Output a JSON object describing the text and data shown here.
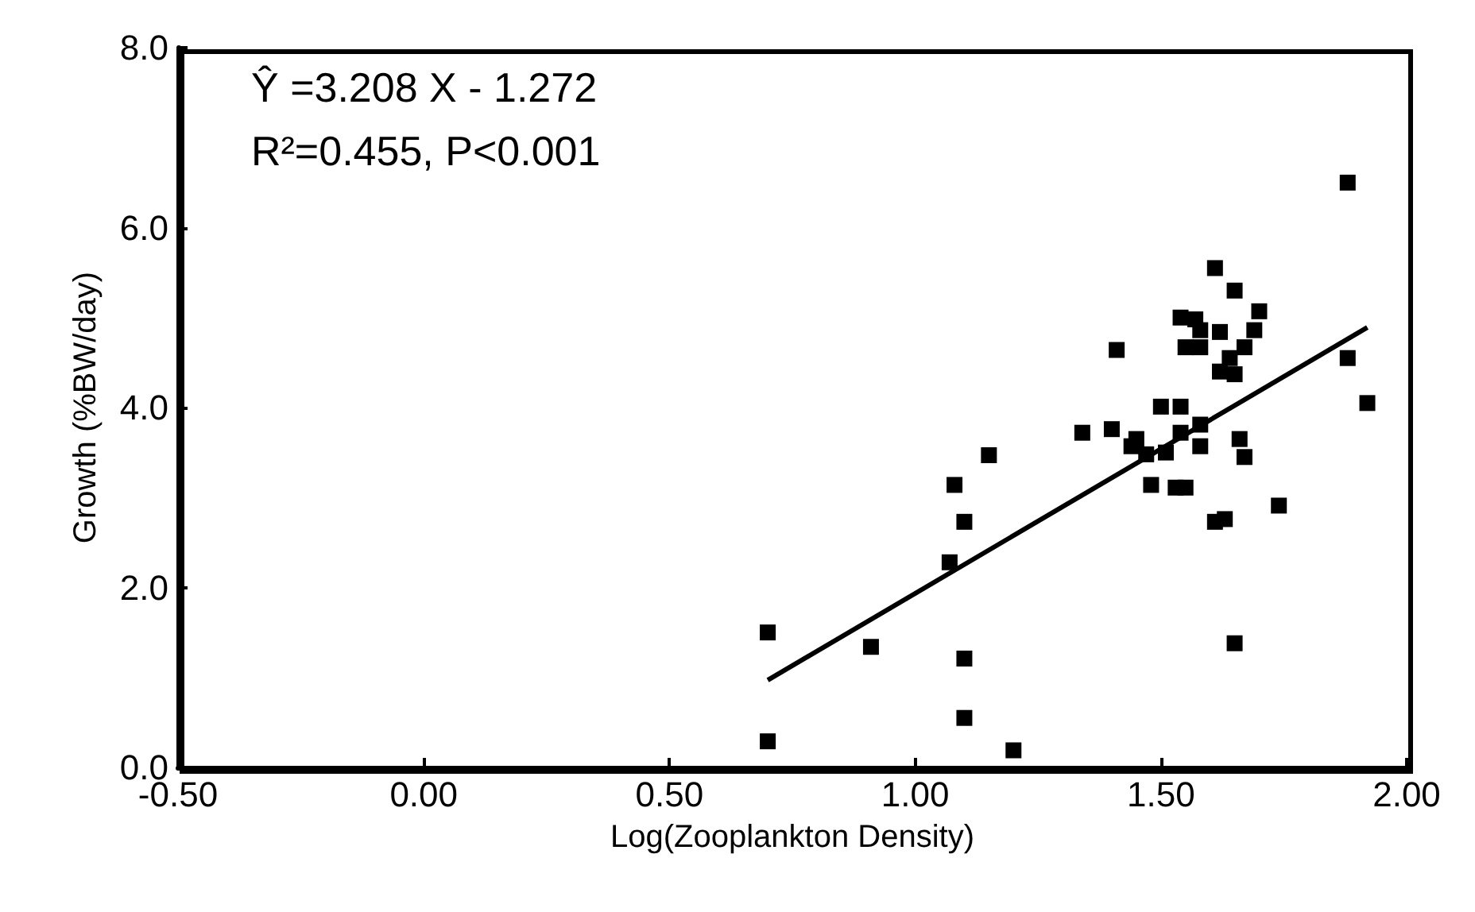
{
  "chart_data": {
    "type": "scatter",
    "xlabel": "Log(Zooplankton Density)",
    "ylabel": "Growth (%BW/day)",
    "annotations": [
      "Ŷ =3.208 X - 1.272",
      "R²=0.455, P<0.001"
    ],
    "xlim": [
      -0.5,
      2.0
    ],
    "ylim": [
      0,
      8
    ],
    "xticks": [
      {
        "value": -0.5,
        "label": "-0.50"
      },
      {
        "value": 0,
        "label": "0.00"
      },
      {
        "value": 0.5,
        "label": "0.50"
      },
      {
        "value": 1,
        "label": "1.00"
      },
      {
        "value": 1.5,
        "label": "1.50"
      },
      {
        "value": 2,
        "label": "2.00"
      }
    ],
    "yticks": [
      {
        "value": 0,
        "label": "0.0"
      },
      {
        "value": 2,
        "label": "2.0"
      },
      {
        "value": 4,
        "label": "4.0"
      },
      {
        "value": 6,
        "label": "6.0"
      },
      {
        "value": 8,
        "label": "8.0"
      }
    ],
    "grid": false,
    "marker": "square",
    "series": [
      {
        "color": "#000000",
        "x": [
          0.7,
          0.7,
          0.91,
          1.1,
          1.1,
          1.2,
          1.61,
          1.65,
          1.7,
          1.69,
          1.54,
          1.57,
          1.58,
          1.62,
          1.55,
          1.58,
          1.67,
          1.64,
          1.62,
          1.65,
          1.41,
          1.88,
          1.88,
          1.92,
          1.5,
          1.54,
          1.34,
          1.4,
          1.58,
          1.54,
          1.45,
          1.44,
          1.47,
          1.51,
          1.58,
          1.66,
          1.67,
          1.15,
          1.08,
          1.1,
          1.07,
          1.48,
          1.53,
          1.55,
          1.74,
          1.61,
          1.63,
          1.65
        ],
        "values": [
          1.5,
          0.29,
          1.34,
          1.21,
          0.55,
          0.19,
          5.55,
          5.3,
          5.07,
          4.86,
          5.0,
          4.98,
          4.86,
          4.84,
          4.67,
          4.67,
          4.67,
          4.55,
          4.4,
          4.37,
          4.64,
          6.5,
          4.55,
          4.05,
          4.01,
          4.01,
          3.72,
          3.76,
          3.81,
          3.72,
          3.65,
          3.57,
          3.48,
          3.5,
          3.57,
          3.65,
          3.45,
          3.47,
          3.14,
          2.73,
          2.28,
          3.14,
          3.11,
          3.11,
          2.91,
          2.73,
          2.76,
          1.38
        ]
      },
      {
        "type": "line",
        "color": "#000000",
        "marker": "none",
        "line_style": "solid",
        "x": [
          0.7,
          1.92
        ],
        "values": [
          0.97,
          4.89
        ]
      }
    ]
  }
}
